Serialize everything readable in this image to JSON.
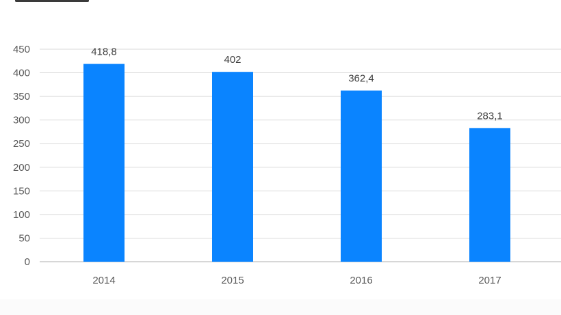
{
  "chart_data": {
    "type": "bar",
    "categories": [
      "2014",
      "2015",
      "2016",
      "2017"
    ],
    "values": [
      418.8,
      402,
      362.4,
      283.1
    ],
    "data_labels": [
      "418,8",
      "402",
      "362,4",
      "283,1"
    ],
    "title": "",
    "xlabel": "",
    "ylabel": "",
    "ylim": [
      0,
      450
    ],
    "y_ticks": [
      0,
      50,
      100,
      150,
      200,
      250,
      300,
      350,
      400,
      450
    ],
    "grid": true,
    "legend": "none",
    "bar_color": "#0a84ff"
  }
}
